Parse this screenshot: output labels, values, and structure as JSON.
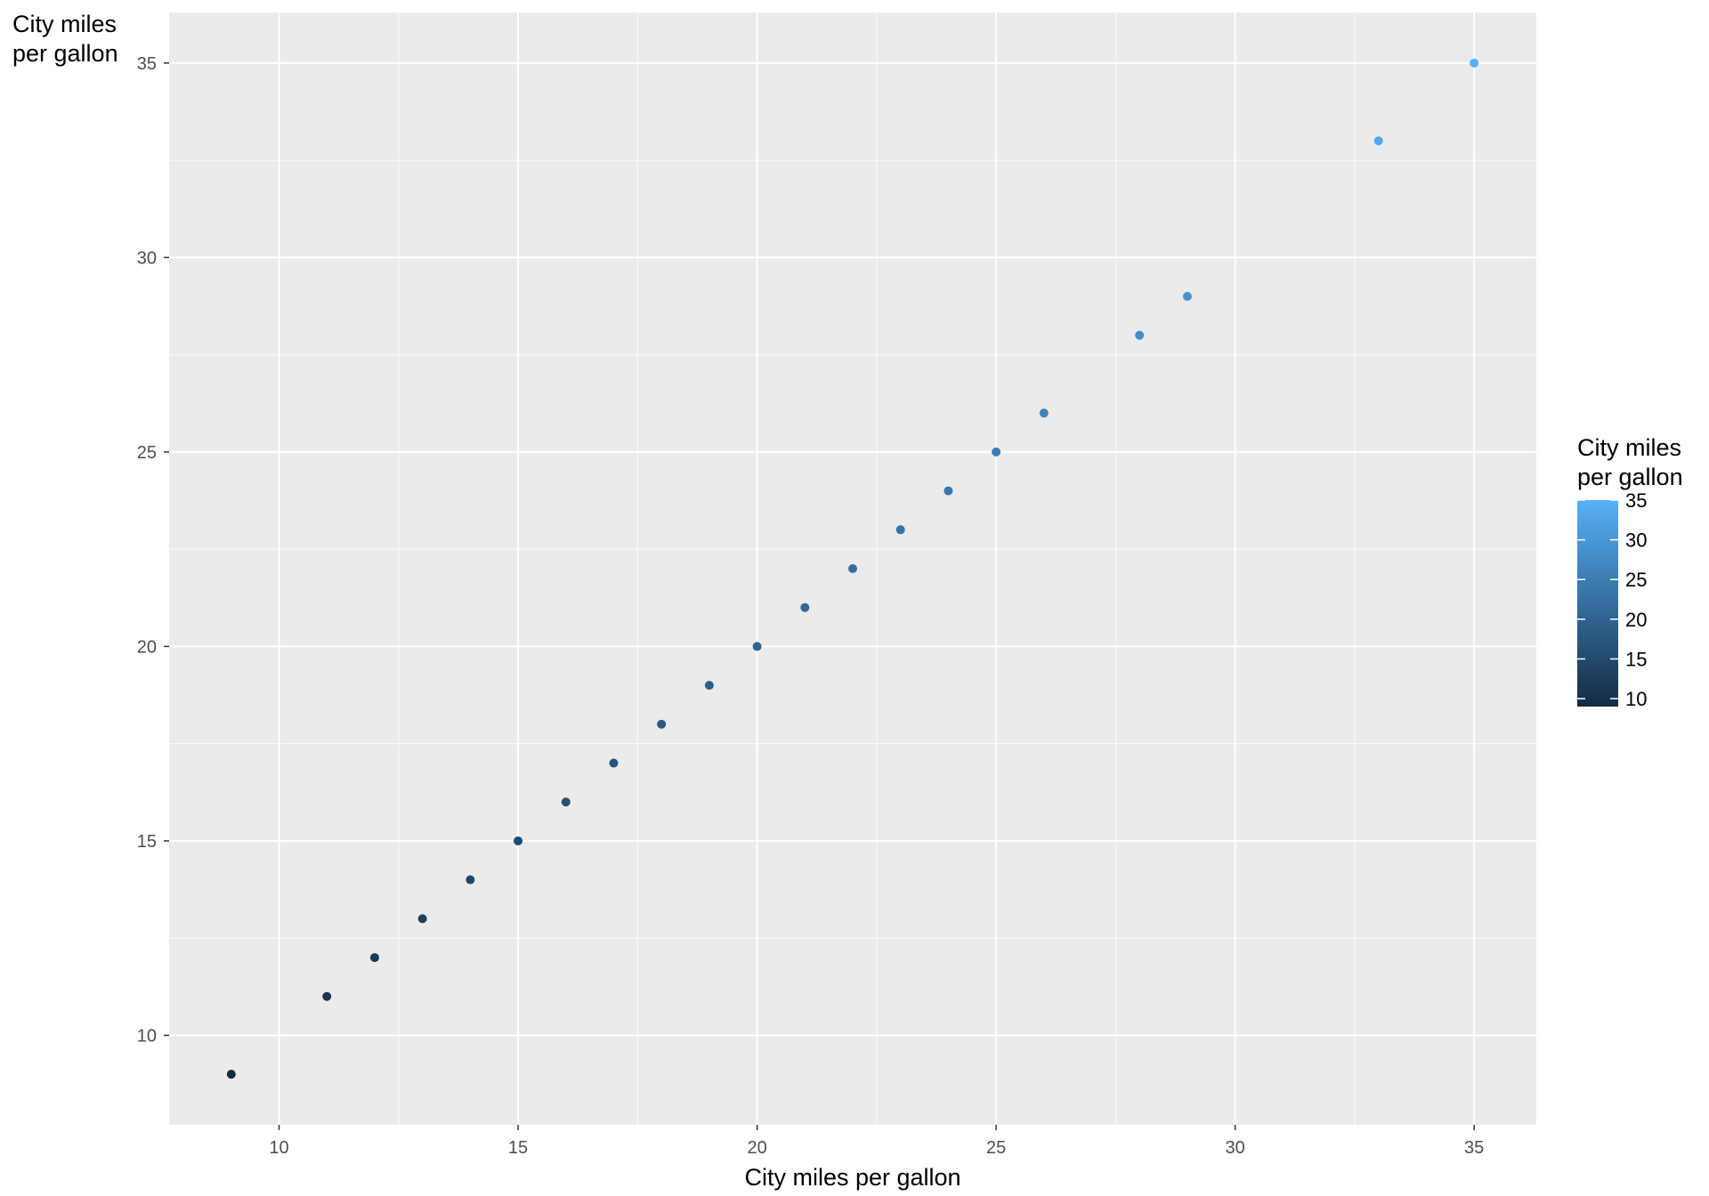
{
  "chart_data": {
    "type": "scatter",
    "title": "",
    "xlabel": "City miles per gallon",
    "ylabel_lines": [
      "City miles",
      "per gallon"
    ],
    "xlim": [
      7.7,
      36.3
    ],
    "ylim": [
      7.7,
      36.3
    ],
    "x_ticks": [
      10,
      15,
      20,
      25,
      30,
      35
    ],
    "y_ticks": [
      10,
      15,
      20,
      25,
      30,
      35
    ],
    "x_tick_labels": [
      "10",
      "15",
      "20",
      "25",
      "30",
      "35"
    ],
    "y_tick_labels": [
      "10",
      "15",
      "20",
      "25",
      "30",
      "35"
    ],
    "grid": true,
    "points": [
      {
        "x": 9,
        "y": 9
      },
      {
        "x": 11,
        "y": 11
      },
      {
        "x": 12,
        "y": 12
      },
      {
        "x": 13,
        "y": 13
      },
      {
        "x": 14,
        "y": 14
      },
      {
        "x": 15,
        "y": 15
      },
      {
        "x": 16,
        "y": 16
      },
      {
        "x": 17,
        "y": 17
      },
      {
        "x": 18,
        "y": 18
      },
      {
        "x": 19,
        "y": 19
      },
      {
        "x": 20,
        "y": 20
      },
      {
        "x": 21,
        "y": 21
      },
      {
        "x": 22,
        "y": 22
      },
      {
        "x": 23,
        "y": 23
      },
      {
        "x": 24,
        "y": 24
      },
      {
        "x": 25,
        "y": 25
      },
      {
        "x": 26,
        "y": 26
      },
      {
        "x": 28,
        "y": 28
      },
      {
        "x": 29,
        "y": 29
      },
      {
        "x": 33,
        "y": 33
      },
      {
        "x": 35,
        "y": 35
      }
    ],
    "legend": {
      "title_lines": [
        "City miles",
        "per gallon"
      ],
      "placement": "right",
      "min": 9,
      "max": 35,
      "ticks": [
        10,
        15,
        20,
        25,
        30,
        35
      ],
      "tick_labels": [
        "10",
        "15",
        "20",
        "25",
        "30",
        "35"
      ],
      "color_low": "#132B43",
      "color_high": "#56B1F7"
    },
    "colors": {
      "panel_background": "#EBEBEB",
      "grid_line": "#FFFFFF"
    }
  }
}
